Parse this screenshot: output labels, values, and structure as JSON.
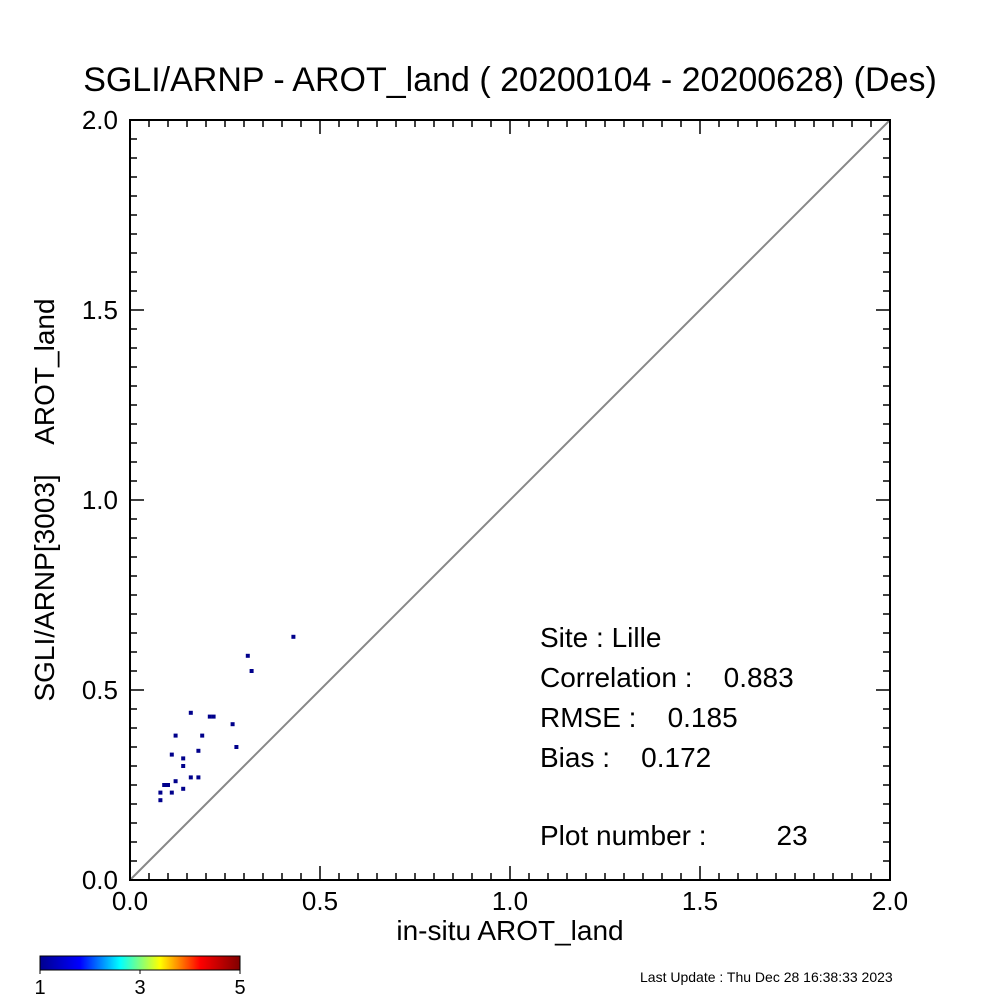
{
  "chart_data": {
    "type": "scatter",
    "title": "SGLI/ARNP - AROT_land ( 20200104 - 20200628) (Des)",
    "xlabel": "in-situ AROT_land",
    "ylabel": "SGLI/ARNP[3003]    AROT_land",
    "xlim": [
      0.0,
      2.0
    ],
    "ylim": [
      0.0,
      2.0
    ],
    "xticks": [
      "0.0",
      "0.5",
      "1.0",
      "1.5",
      "2.0"
    ],
    "yticks": [
      "0.0",
      "0.5",
      "1.0",
      "1.5",
      "2.0"
    ],
    "one_to_one_line": true,
    "points": [
      {
        "x": 0.08,
        "y": 0.21
      },
      {
        "x": 0.08,
        "y": 0.23
      },
      {
        "x": 0.09,
        "y": 0.25
      },
      {
        "x": 0.1,
        "y": 0.25
      },
      {
        "x": 0.11,
        "y": 0.23
      },
      {
        "x": 0.11,
        "y": 0.33
      },
      {
        "x": 0.12,
        "y": 0.26
      },
      {
        "x": 0.12,
        "y": 0.38
      },
      {
        "x": 0.14,
        "y": 0.24
      },
      {
        "x": 0.14,
        "y": 0.3
      },
      {
        "x": 0.14,
        "y": 0.32
      },
      {
        "x": 0.16,
        "y": 0.27
      },
      {
        "x": 0.16,
        "y": 0.44
      },
      {
        "x": 0.18,
        "y": 0.27
      },
      {
        "x": 0.18,
        "y": 0.34
      },
      {
        "x": 0.19,
        "y": 0.38
      },
      {
        "x": 0.21,
        "y": 0.43
      },
      {
        "x": 0.22,
        "y": 0.43
      },
      {
        "x": 0.27,
        "y": 0.41
      },
      {
        "x": 0.28,
        "y": 0.35
      },
      {
        "x": 0.31,
        "y": 0.59
      },
      {
        "x": 0.32,
        "y": 0.55
      },
      {
        "x": 0.43,
        "y": 0.64
      }
    ],
    "point_color": "#00008b",
    "colorbar": {
      "ticks": [
        "1",
        "3",
        "5"
      ],
      "colors": [
        "#00008f",
        "#0000ff",
        "#00ffff",
        "#ffff00",
        "#ff0000",
        "#800000"
      ]
    }
  },
  "stats": {
    "site": "Site : Lille",
    "correlation": "Correlation :    0.883",
    "rmse": "RMSE :    0.185",
    "bias": "Bias :    0.172",
    "plot_number": "Plot number :         23"
  },
  "footer": {
    "last_update": "Last Update : Thu Dec 28 16:38:33 2023"
  }
}
